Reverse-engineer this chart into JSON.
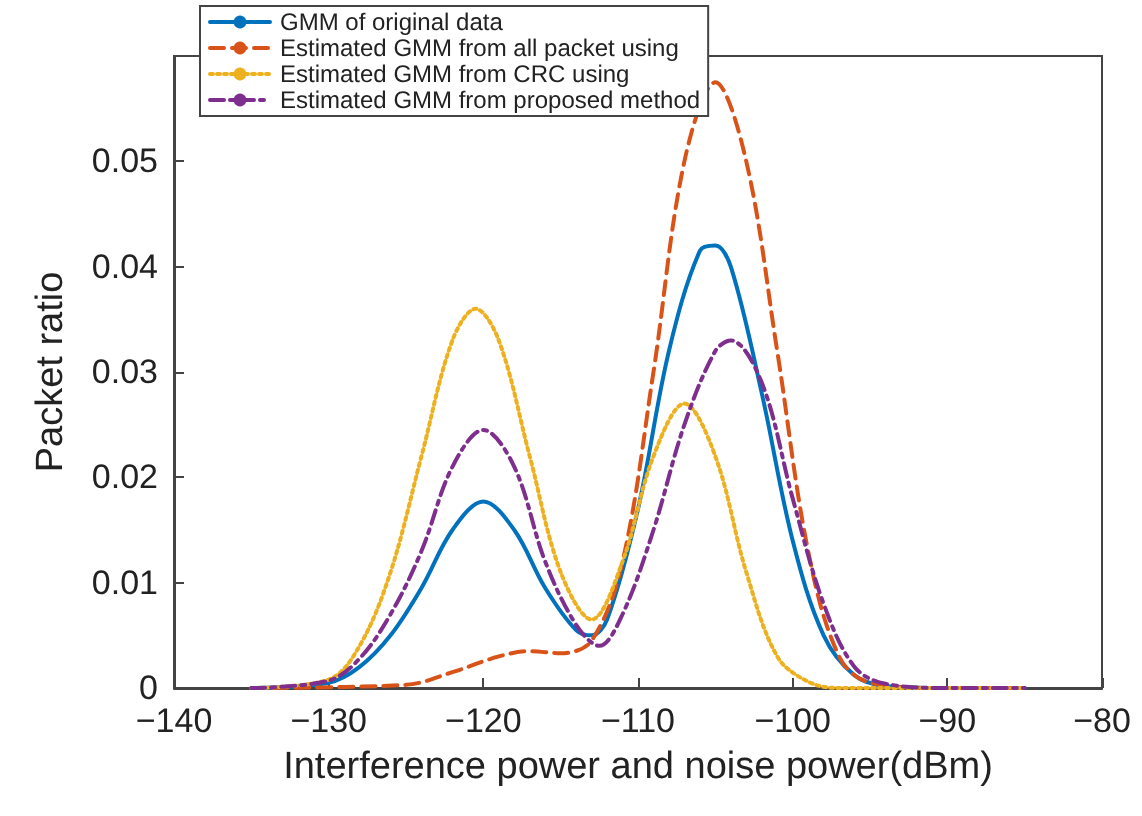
{
  "chart_data": {
    "type": "line",
    "xlabel": "Interference power and noise power(dBm)",
    "ylabel": "Packet ratio",
    "xlim": [
      -140,
      -80
    ],
    "xticks": [
      -140,
      -130,
      -120,
      -110,
      -100,
      -90,
      -80
    ],
    "ylim": [
      0,
      0.06
    ],
    "yticks": [
      0,
      0.01,
      0.02,
      0.03,
      0.04,
      0.05
    ],
    "grid": false,
    "legend": "top left",
    "marker": "none",
    "series": [
      {
        "name": "GMM of original data",
        "color": "#0072bd",
        "line_style": "solid",
        "x": [
          -135,
          -130,
          -128,
          -126,
          -124,
          -122,
          -120,
          -118,
          -116,
          -114,
          -113,
          -112,
          -110,
          -108,
          -106,
          -105,
          -104,
          -102,
          -100,
          -98,
          -96,
          -94,
          -90,
          -85
        ],
        "values": [
          0,
          0.0005,
          0.002,
          0.005,
          0.0095,
          0.015,
          0.0177,
          0.015,
          0.0095,
          0.0055,
          0.005,
          0.0065,
          0.017,
          0.032,
          0.0415,
          0.042,
          0.04,
          0.028,
          0.014,
          0.005,
          0.0012,
          0.0002,
          0,
          0
        ]
      },
      {
        "name": "Estimated GMM from all packet using",
        "color": "#d95319",
        "line_style": "dashed",
        "x": [
          -135,
          -125,
          -122,
          -119,
          -117,
          -115,
          -113,
          -111,
          -109,
          -107,
          -105,
          -103,
          -101,
          -99,
          -97,
          -95,
          -90,
          -85
        ],
        "values": [
          0,
          0.0003,
          0.0015,
          0.003,
          0.0035,
          0.0033,
          0.0045,
          0.012,
          0.03,
          0.05,
          0.0575,
          0.05,
          0.032,
          0.013,
          0.003,
          0.0005,
          0,
          0
        ]
      },
      {
        "name": "Estimated GMM from CRC using",
        "color": "#edb120",
        "line_style": "dotted",
        "x": [
          -135,
          -130,
          -128,
          -126,
          -124,
          -122,
          -120.5,
          -119,
          -117,
          -115,
          -113,
          -111,
          -109,
          -107,
          -105,
          -103,
          -101,
          -99,
          -97,
          -85
        ],
        "values": [
          0,
          0.0008,
          0.004,
          0.011,
          0.022,
          0.033,
          0.036,
          0.033,
          0.022,
          0.011,
          0.0065,
          0.012,
          0.022,
          0.027,
          0.022,
          0.011,
          0.003,
          0.0006,
          0,
          0
        ]
      },
      {
        "name": "Estimated GMM from proposed method",
        "color": "#7e2f8e",
        "line_style": "dashdot",
        "x": [
          -135,
          -130,
          -128,
          -126,
          -124,
          -122,
          -120,
          -118,
          -116,
          -114,
          -112.5,
          -111,
          -109,
          -107,
          -105,
          -104,
          -102,
          -100,
          -98,
          -96,
          -94,
          -90,
          -85
        ],
        "values": [
          0,
          0.0007,
          0.0028,
          0.007,
          0.013,
          0.021,
          0.0245,
          0.021,
          0.012,
          0.006,
          0.004,
          0.007,
          0.015,
          0.025,
          0.032,
          0.033,
          0.029,
          0.018,
          0.008,
          0.002,
          0.0004,
          0,
          0
        ]
      }
    ]
  }
}
